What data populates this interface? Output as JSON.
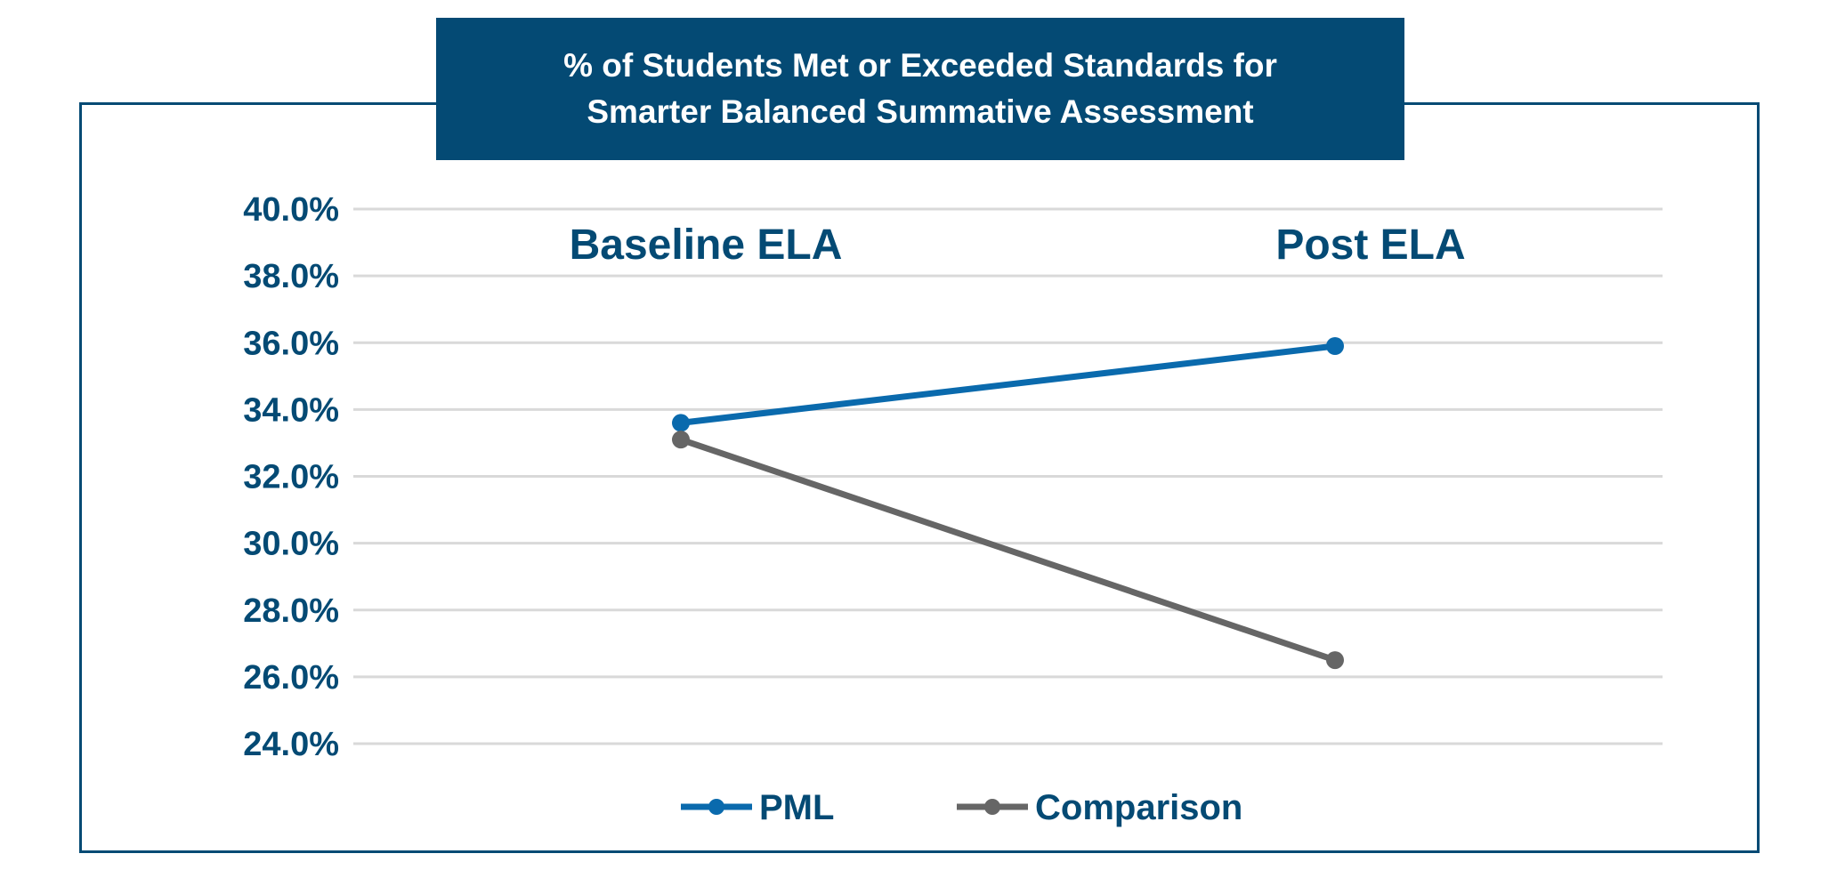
{
  "chart_data": {
    "type": "line",
    "title_lines": [
      "% of Students Met or Exceeded Standards for",
      "Smarter Balanced Summative Assessment"
    ],
    "categories": [
      "Baseline ELA",
      "Post ELA"
    ],
    "series": [
      {
        "name": "PML",
        "values": [
          33.6,
          35.9
        ],
        "color": "#0a6aad"
      },
      {
        "name": "Comparison",
        "values": [
          33.1,
          26.5
        ],
        "color": "#666666"
      }
    ],
    "ylim": [
      24,
      40
    ],
    "yticks": [
      40,
      38,
      36,
      34,
      32,
      30,
      28,
      26,
      24
    ],
    "ytick_labels": [
      "40.0%",
      "38.0%",
      "36.0%",
      "34.0%",
      "32.0%",
      "30.0%",
      "28.0%",
      "26.0%",
      "24.0%"
    ],
    "grid": true,
    "legend_position": "bottom"
  }
}
